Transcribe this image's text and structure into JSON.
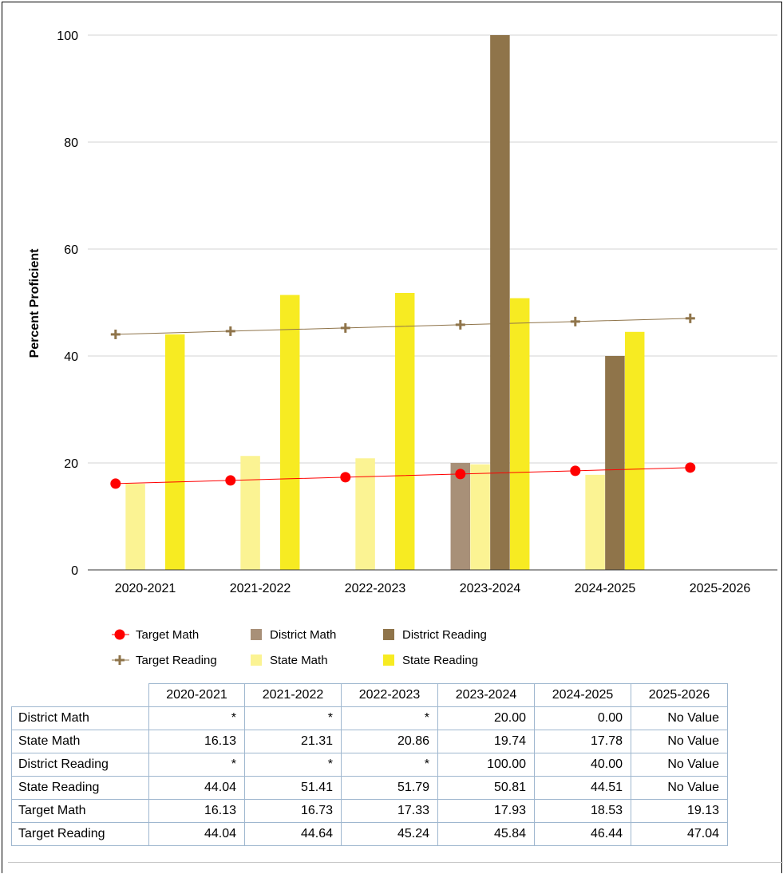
{
  "chart_data": {
    "type": "bar",
    "categories": [
      "2020-2021",
      "2021-2022",
      "2022-2023",
      "2023-2024",
      "2024-2025",
      "2025-2026"
    ],
    "ylabel": "Percent Proficient",
    "ylim": [
      0,
      100
    ],
    "yticks": [
      0,
      20,
      40,
      60,
      80,
      100
    ],
    "grid": true,
    "legend_position": "bottom",
    "series": [
      {
        "name": "District Math",
        "kind": "bar",
        "color": "#a89078",
        "values": [
          null,
          null,
          null,
          20.0,
          0.0,
          null
        ]
      },
      {
        "name": "State Math",
        "kind": "bar",
        "color": "#fbf393",
        "values": [
          16.13,
          21.31,
          20.86,
          19.74,
          17.78,
          null
        ]
      },
      {
        "name": "District Reading",
        "kind": "bar",
        "color": "#8f744a",
        "values": [
          null,
          null,
          null,
          100.0,
          40.0,
          null
        ]
      },
      {
        "name": "State Reading",
        "kind": "bar",
        "color": "#f7eb22",
        "values": [
          44.04,
          51.41,
          51.79,
          50.81,
          44.51,
          null
        ]
      },
      {
        "name": "Target Math",
        "kind": "line",
        "marker": "circle",
        "color": "#ff0000",
        "values": [
          16.13,
          16.73,
          17.33,
          17.93,
          18.53,
          19.13
        ]
      },
      {
        "name": "Target Reading",
        "kind": "line",
        "marker": "plus",
        "color": "#8f744a",
        "values": [
          44.04,
          44.64,
          45.24,
          45.84,
          46.44,
          47.04
        ]
      }
    ],
    "legend": [
      [
        "Target Math",
        "District Math",
        "District Reading"
      ],
      [
        "Target Reading",
        "State Math",
        "State Reading"
      ]
    ]
  },
  "table": {
    "headers": [
      "2020-2021",
      "2021-2022",
      "2022-2023",
      "2023-2024",
      "2024-2025",
      "2025-2026"
    ],
    "rows": [
      {
        "label": "District Math",
        "cells": [
          "*",
          "*",
          "*",
          "20.00",
          "0.00",
          "No Value"
        ]
      },
      {
        "label": "State Math",
        "cells": [
          "16.13",
          "21.31",
          "20.86",
          "19.74",
          "17.78",
          "No Value"
        ]
      },
      {
        "label": "District Reading",
        "cells": [
          "*",
          "*",
          "*",
          "100.00",
          "40.00",
          "No Value"
        ]
      },
      {
        "label": "State Reading",
        "cells": [
          "44.04",
          "51.41",
          "51.79",
          "50.81",
          "44.51",
          "No Value"
        ]
      },
      {
        "label": "Target Math",
        "cells": [
          "16.13",
          "16.73",
          "17.33",
          "17.93",
          "18.53",
          "19.13"
        ]
      },
      {
        "label": "Target Reading",
        "cells": [
          "44.04",
          "44.64",
          "45.24",
          "45.84",
          "46.44",
          "47.04"
        ]
      }
    ]
  }
}
